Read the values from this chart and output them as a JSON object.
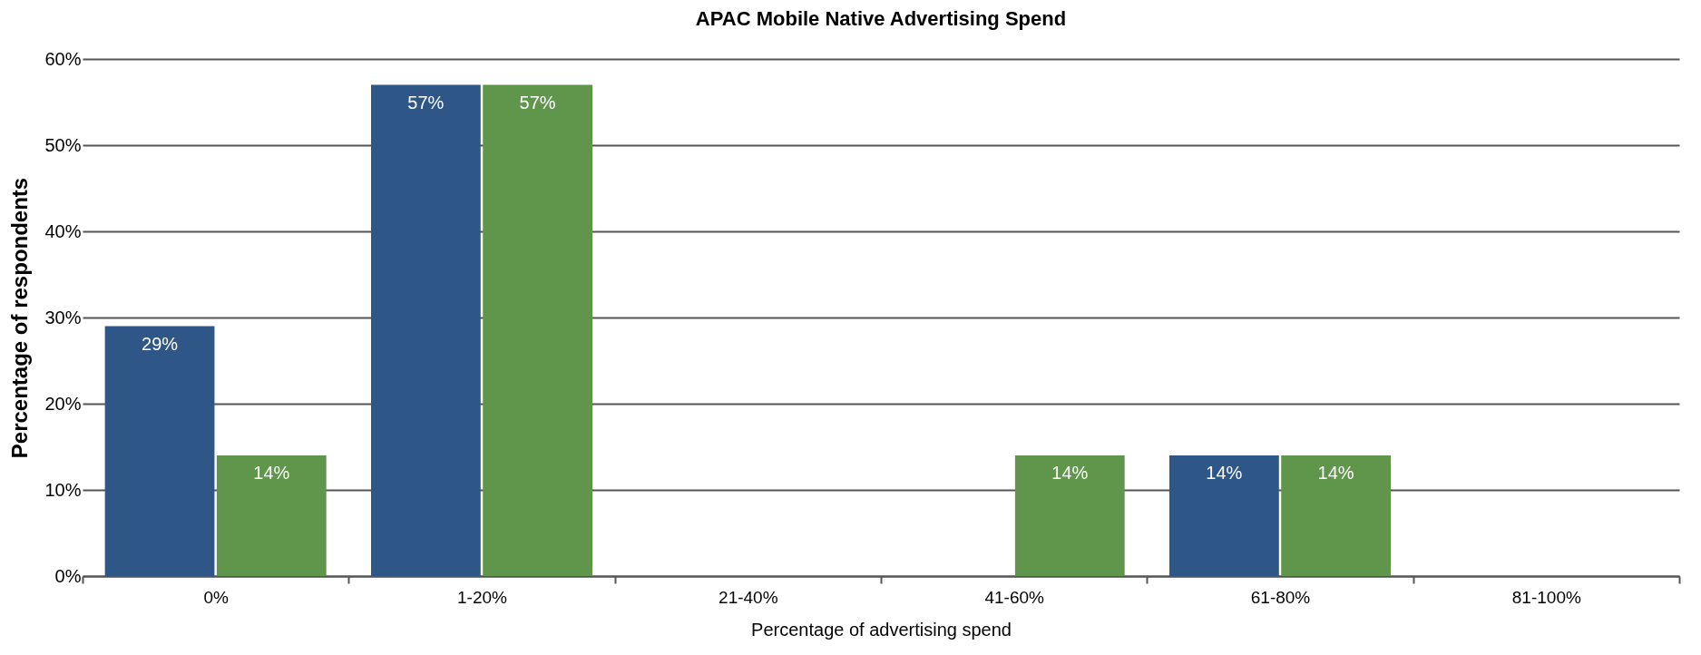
{
  "chart_data": {
    "type": "bar",
    "title": "APAC Mobile Native Advertising Spend",
    "xlabel": "Percentage of advertising spend",
    "ylabel": "Percentage of respondents",
    "categories": [
      "0%",
      "1-20%",
      "21-40%",
      "41-60%",
      "61-80%",
      "81-100%"
    ],
    "series": [
      {
        "color": "#2e5686",
        "values": [
          29,
          57,
          0,
          0,
          14,
          0
        ],
        "value_labels": [
          "29%",
          "57%",
          null,
          null,
          "14%",
          null
        ]
      },
      {
        "color": "#5f964b",
        "values": [
          14,
          57,
          0,
          14,
          14,
          0
        ],
        "value_labels": [
          "14%",
          "57%",
          null,
          "14%",
          "14%",
          null
        ]
      }
    ],
    "ylim": [
      0,
      60
    ],
    "yticks": [
      {
        "value": 0,
        "label": "0%"
      },
      {
        "value": 10,
        "label": "10%"
      },
      {
        "value": 20,
        "label": "20%"
      },
      {
        "value": 30,
        "label": "30%"
      },
      {
        "value": 40,
        "label": "40%"
      },
      {
        "value": 50,
        "label": "50%"
      },
      {
        "value": 60,
        "label": "60%"
      }
    ],
    "grid": "y",
    "legend": false
  }
}
